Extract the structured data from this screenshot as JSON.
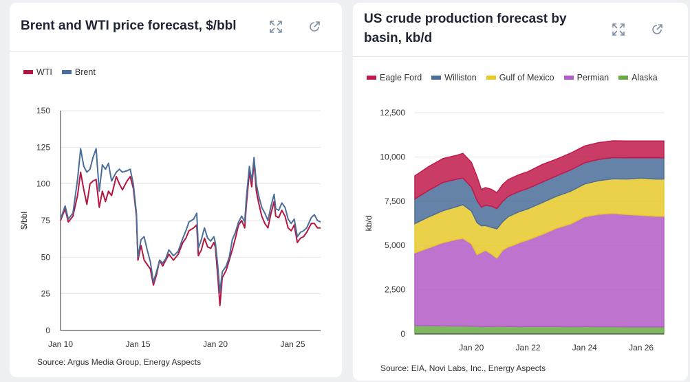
{
  "charts": [
    {
      "title": "Brent and WTI price forecast, $/bbl",
      "source": "Source: Argus Media Group, Energy Aspects",
      "legend": [
        {
          "label": "WTI",
          "color": "#b5163f"
        },
        {
          "label": "Brent",
          "color": "#4a6d99"
        }
      ]
    },
    {
      "title": "US crude production forecast by basin, kb/d",
      "source": "Source: EIA, Novi Labs, Inc., Energy Aspects",
      "legend": [
        {
          "label": "Eagle Ford",
          "color": "#c01a4a"
        },
        {
          "label": "Williston",
          "color": "#4a6d99"
        },
        {
          "label": "Gulf of Mexico",
          "color": "#e8c92a"
        },
        {
          "label": "Permian",
          "color": "#b35bc7"
        },
        {
          "label": "Alaska",
          "color": "#6aaa45"
        }
      ]
    }
  ],
  "icons": [
    "expand-icon",
    "share-icon"
  ],
  "chart_data": [
    {
      "type": "line",
      "title": "Brent and WTI price forecast, $/bbl",
      "xlabel": "",
      "ylabel": "$/bbl",
      "ylim": [
        0,
        150
      ],
      "yticks": [
        0,
        25,
        50,
        75,
        100,
        125,
        150
      ],
      "xlim": [
        2010,
        2026.8
      ],
      "xticks": [
        {
          "x": 2010,
          "label": "Jan 10"
        },
        {
          "x": 2015,
          "label": "Jan 15"
        },
        {
          "x": 2020,
          "label": "Jan 20"
        },
        {
          "x": 2025,
          "label": "Jan 25"
        }
      ],
      "grid": true,
      "legend_position": "top-left",
      "series": [
        {
          "name": "WTI",
          "color": "#b5163f",
          "points": [
            [
              2010,
              75
            ],
            [
              2010.3,
              83
            ],
            [
              2010.5,
              74
            ],
            [
              2010.8,
              78
            ],
            [
              2011.1,
              92
            ],
            [
              2011.3,
              108
            ],
            [
              2011.5,
              96
            ],
            [
              2011.7,
              86
            ],
            [
              2011.9,
              100
            ],
            [
              2012.1,
              102
            ],
            [
              2012.3,
              103
            ],
            [
              2012.5,
              84
            ],
            [
              2012.7,
              95
            ],
            [
              2012.9,
              88
            ],
            [
              2013.1,
              95
            ],
            [
              2013.3,
              92
            ],
            [
              2013.6,
              105
            ],
            [
              2013.8,
              100
            ],
            [
              2014.0,
              96
            ],
            [
              2014.3,
              102
            ],
            [
              2014.5,
              105
            ],
            [
              2014.7,
              97
            ],
            [
              2014.9,
              78
            ],
            [
              2015.0,
              48
            ],
            [
              2015.2,
              58
            ],
            [
              2015.4,
              48
            ],
            [
              2015.6,
              45
            ],
            [
              2015.8,
              42
            ],
            [
              2016.0,
              31
            ],
            [
              2016.2,
              38
            ],
            [
              2016.4,
              48
            ],
            [
              2016.6,
              44
            ],
            [
              2016.8,
              48
            ],
            [
              2017.0,
              52
            ],
            [
              2017.3,
              48
            ],
            [
              2017.6,
              52
            ],
            [
              2017.9,
              60
            ],
            [
              2018.1,
              63
            ],
            [
              2018.3,
              68
            ],
            [
              2018.6,
              70
            ],
            [
              2018.8,
              72
            ],
            [
              2018.9,
              51
            ],
            [
              2019.1,
              55
            ],
            [
              2019.3,
              63
            ],
            [
              2019.5,
              57
            ],
            [
              2019.7,
              56
            ],
            [
              2019.9,
              60
            ],
            [
              2020.0,
              57
            ],
            [
              2020.15,
              38
            ],
            [
              2020.3,
              17
            ],
            [
              2020.45,
              36
            ],
            [
              2020.7,
              41
            ],
            [
              2020.9,
              48
            ],
            [
              2021.1,
              55
            ],
            [
              2021.3,
              63
            ],
            [
              2021.5,
              72
            ],
            [
              2021.7,
              75
            ],
            [
              2021.9,
              70
            ],
            [
              2022.0,
              85
            ],
            [
              2022.2,
              108
            ],
            [
              2022.35,
              98
            ],
            [
              2022.5,
              115
            ],
            [
              2022.65,
              95
            ],
            [
              2022.8,
              87
            ],
            [
              2023.0,
              78
            ],
            [
              2023.2,
              73
            ],
            [
              2023.4,
              70
            ],
            [
              2023.6,
              80
            ],
            [
              2023.8,
              88
            ],
            [
              2023.9,
              78
            ],
            [
              2024.1,
              77
            ],
            [
              2024.3,
              82
            ],
            [
              2024.5,
              78
            ],
            [
              2024.7,
              70
            ],
            [
              2024.9,
              68
            ],
            [
              2025.1,
              72
            ],
            [
              2025.3,
              60
            ],
            [
              2025.5,
              63
            ],
            [
              2025.7,
              64
            ],
            [
              2025.9,
              67
            ],
            [
              2026.2,
              73
            ],
            [
              2026.4,
              73
            ],
            [
              2026.6,
              70
            ],
            [
              2026.8,
              70
            ]
          ]
        },
        {
          "name": "Brent",
          "color": "#4a6d99",
          "points": [
            [
              2010,
              76
            ],
            [
              2010.3,
              85
            ],
            [
              2010.5,
              76
            ],
            [
              2010.8,
              80
            ],
            [
              2011.1,
              103
            ],
            [
              2011.3,
              124
            ],
            [
              2011.5,
              112
            ],
            [
              2011.7,
              108
            ],
            [
              2011.9,
              110
            ],
            [
              2012.1,
              118
            ],
            [
              2012.3,
              124
            ],
            [
              2012.5,
              95
            ],
            [
              2012.7,
              113
            ],
            [
              2012.9,
              110
            ],
            [
              2013.1,
              114
            ],
            [
              2013.3,
              102
            ],
            [
              2013.6,
              108
            ],
            [
              2013.8,
              110
            ],
            [
              2014.0,
              108
            ],
            [
              2014.3,
              109
            ],
            [
              2014.5,
              110
            ],
            [
              2014.7,
              100
            ],
            [
              2014.9,
              80
            ],
            [
              2015.0,
              50
            ],
            [
              2015.2,
              62
            ],
            [
              2015.4,
              64
            ],
            [
              2015.6,
              55
            ],
            [
              2015.8,
              47
            ],
            [
              2016.0,
              33
            ],
            [
              2016.2,
              40
            ],
            [
              2016.4,
              48
            ],
            [
              2016.6,
              46
            ],
            [
              2016.8,
              49
            ],
            [
              2017.0,
              55
            ],
            [
              2017.3,
              51
            ],
            [
              2017.6,
              54
            ],
            [
              2017.9,
              63
            ],
            [
              2018.1,
              68
            ],
            [
              2018.3,
              74
            ],
            [
              2018.6,
              76
            ],
            [
              2018.8,
              80
            ],
            [
              2018.9,
              56
            ],
            [
              2019.1,
              62
            ],
            [
              2019.3,
              70
            ],
            [
              2019.5,
              63
            ],
            [
              2019.7,
              61
            ],
            [
              2019.9,
              64
            ],
            [
              2020.0,
              60
            ],
            [
              2020.15,
              45
            ],
            [
              2020.3,
              26
            ],
            [
              2020.45,
              40
            ],
            [
              2020.7,
              44
            ],
            [
              2020.9,
              50
            ],
            [
              2021.1,
              62
            ],
            [
              2021.3,
              67
            ],
            [
              2021.5,
              74
            ],
            [
              2021.7,
              78
            ],
            [
              2021.9,
              74
            ],
            [
              2022.0,
              90
            ],
            [
              2022.2,
              112
            ],
            [
              2022.35,
              102
            ],
            [
              2022.5,
              118
            ],
            [
              2022.65,
              100
            ],
            [
              2022.8,
              92
            ],
            [
              2023.0,
              84
            ],
            [
              2023.2,
              80
            ],
            [
              2023.4,
              75
            ],
            [
              2023.6,
              85
            ],
            [
              2023.8,
              93
            ],
            [
              2023.9,
              83
            ],
            [
              2024.1,
              82
            ],
            [
              2024.3,
              87
            ],
            [
              2024.5,
              84
            ],
            [
              2024.7,
              76
            ],
            [
              2024.9,
              73
            ],
            [
              2025.1,
              76
            ],
            [
              2025.3,
              64
            ],
            [
              2025.5,
              67
            ],
            [
              2025.7,
              68
            ],
            [
              2025.9,
              70
            ],
            [
              2026.2,
              77
            ],
            [
              2026.4,
              79
            ],
            [
              2026.6,
              75
            ],
            [
              2026.8,
              74
            ]
          ]
        }
      ]
    },
    {
      "type": "area",
      "stacked": true,
      "title": "US crude production forecast by basin, kb/d",
      "xlabel": "",
      "ylabel": "kb/d",
      "ylim": [
        0,
        12500
      ],
      "yticks": [
        0,
        2500,
        5000,
        7500,
        10000,
        12500
      ],
      "ytick_labels": [
        "0",
        "2,500",
        "5,000",
        "7,500",
        "10,000",
        "12,500"
      ],
      "xlim": [
        2018.0,
        2026.8
      ],
      "xticks": [
        {
          "x": 2020,
          "label": "Jan 20"
        },
        {
          "x": 2022,
          "label": "Jan 22"
        },
        {
          "x": 2024,
          "label": "Jan 24"
        },
        {
          "x": 2026,
          "label": "Jan 26"
        }
      ],
      "grid": true,
      "legend_position": "top",
      "x": [
        2018.0,
        2018.5,
        2019.0,
        2019.5,
        2019.7,
        2020.0,
        2020.2,
        2020.35,
        2020.5,
        2020.7,
        2020.9,
        2021.1,
        2021.3,
        2021.5,
        2021.7,
        2022.0,
        2022.5,
        2023.0,
        2023.5,
        2024.0,
        2024.5,
        2025.0,
        2025.5,
        2026.0,
        2026.5,
        2026.8
      ],
      "series": [
        {
          "name": "Alaska",
          "color": "#6aaa45",
          "values": [
            480,
            470,
            460,
            450,
            450,
            440,
            430,
            410,
            420,
            420,
            430,
            430,
            420,
            420,
            410,
            420,
            420,
            420,
            410,
            420,
            410,
            410,
            400,
            400,
            400,
            400
          ]
        },
        {
          "name": "Permian",
          "color": "#b35bc7",
          "values": [
            4100,
            4400,
            4700,
            4900,
            4950,
            4650,
            4050,
            4200,
            4300,
            4100,
            3850,
            4300,
            4500,
            4600,
            4750,
            4900,
            5200,
            5550,
            5800,
            6200,
            6350,
            6400,
            6350,
            6300,
            6250,
            6250
          ]
        },
        {
          "name": "Gulf of Mexico",
          "color": "#e8c92a",
          "values": [
            1650,
            1750,
            1800,
            1850,
            1900,
            1850,
            1800,
            1500,
            1400,
            1500,
            1650,
            1600,
            1700,
            1750,
            1750,
            1750,
            1800,
            1800,
            1850,
            1850,
            1900,
            1950,
            2000,
            2100,
            2100,
            2100
          ]
        },
        {
          "name": "Williston",
          "color": "#4a6d99",
          "values": [
            1400,
            1500,
            1600,
            1550,
            1500,
            1350,
            1250,
            1050,
            1150,
            1200,
            1150,
            1150,
            1150,
            1150,
            1150,
            1150,
            1150,
            1150,
            1200,
            1200,
            1200,
            1200,
            1200,
            1150,
            1200,
            1200
          ]
        },
        {
          "name": "Eagle Ford",
          "color": "#c01a4a",
          "values": [
            1300,
            1350,
            1350,
            1350,
            1400,
            1400,
            1350,
            1000,
            1000,
            950,
            900,
            950,
            950,
            950,
            950,
            950,
            1000,
            950,
            950,
            950,
            950,
            950,
            950,
            950,
            950,
            950
          ]
        }
      ]
    }
  ]
}
